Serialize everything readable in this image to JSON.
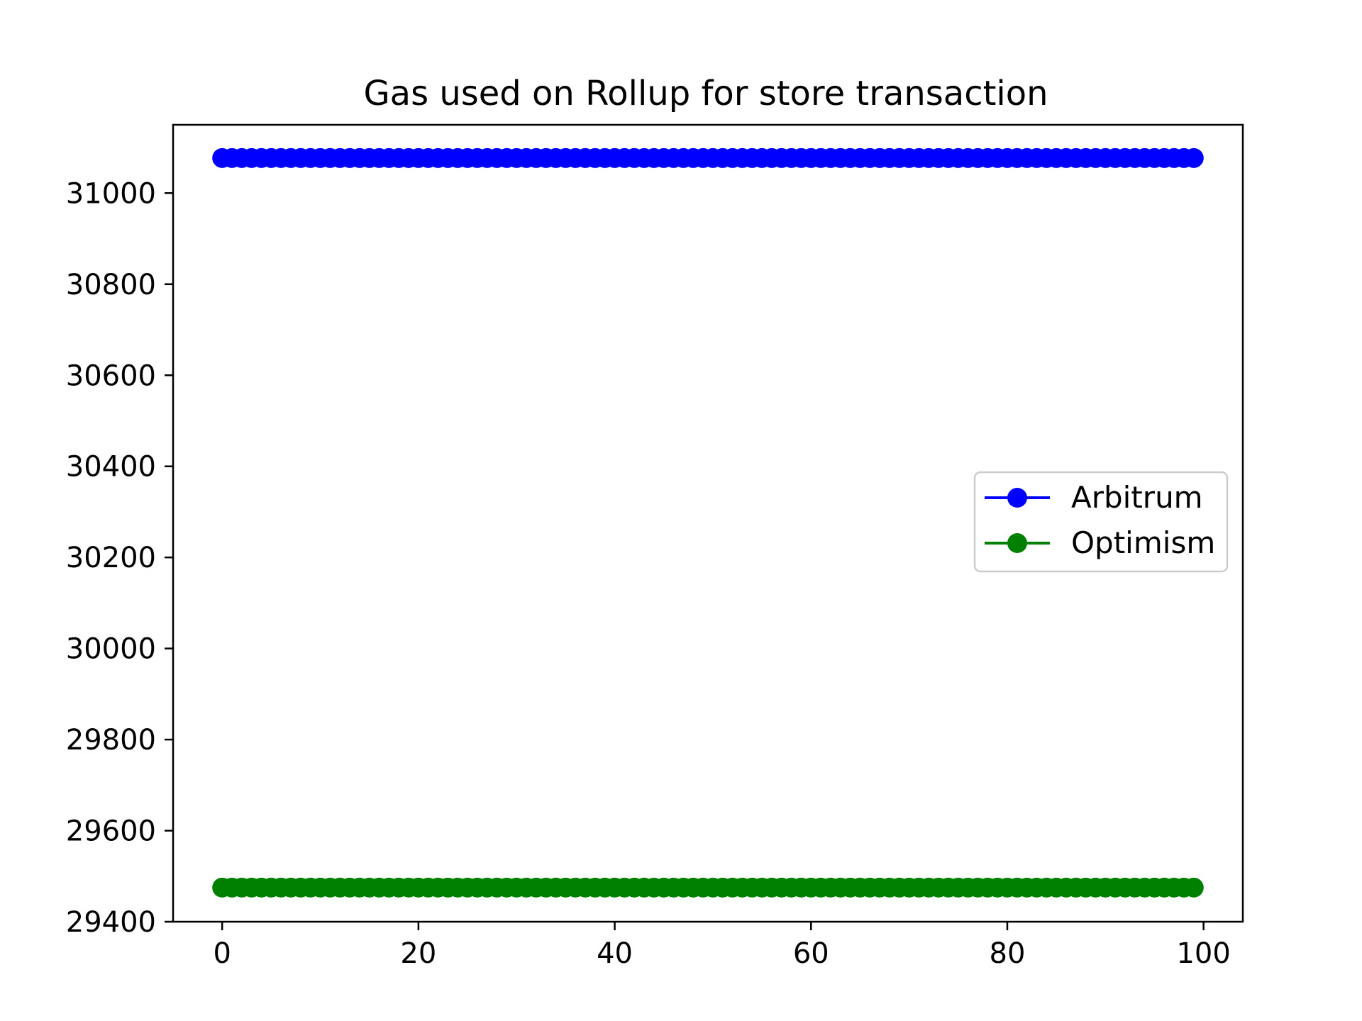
{
  "chart_data": {
    "type": "line",
    "title": "Gas used on Rollup for store transaction",
    "xlabel": "",
    "ylabel": "",
    "xlim": [
      -5,
      104
    ],
    "ylim": [
      29400,
      31150
    ],
    "xticks": [
      0,
      20,
      40,
      60,
      80,
      100
    ],
    "yticks": [
      29400,
      29600,
      29800,
      30000,
      30200,
      30400,
      30600,
      30800,
      31000
    ],
    "grid": false,
    "legend_position": "center-right",
    "x_start": 0,
    "x_end": 99,
    "series": [
      {
        "name": "Arbitrum",
        "color": "#0000ff",
        "marker": "circle",
        "value": 31077
      },
      {
        "name": "Optimism",
        "color": "#008000",
        "marker": "circle",
        "value": 29475
      }
    ]
  }
}
